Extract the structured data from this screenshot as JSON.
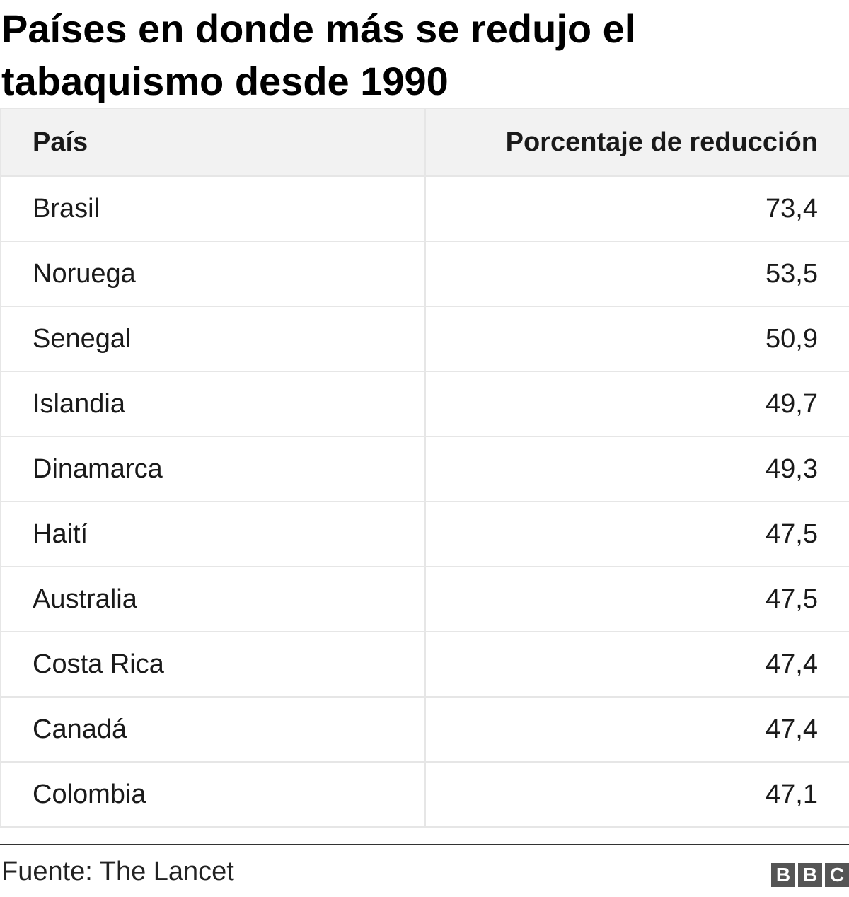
{
  "chart_data": {
    "type": "table",
    "title": "Países en donde más se redujo el tabaquismo desde 1990",
    "columns": [
      "País",
      "Porcentaje de reducción"
    ],
    "rows": [
      {
        "country": "Brasil",
        "value": "73,4"
      },
      {
        "country": "Noruega",
        "value": "53,5"
      },
      {
        "country": "Senegal",
        "value": "50,9"
      },
      {
        "country": "Islandia",
        "value": "49,7"
      },
      {
        "country": "Dinamarca",
        "value": "49,3"
      },
      {
        "country": "Haití",
        "value": "47,5"
      },
      {
        "country": "Australia",
        "value": "47,5"
      },
      {
        "country": "Costa Rica",
        "value": "47,4"
      },
      {
        "country": "Canadá",
        "value": "47,4"
      },
      {
        "country": "Colombia",
        "value": "47,1"
      }
    ],
    "source": "Fuente: The Lancet"
  },
  "branding": {
    "letters": [
      "B",
      "B",
      "C"
    ],
    "color": "#555555"
  }
}
